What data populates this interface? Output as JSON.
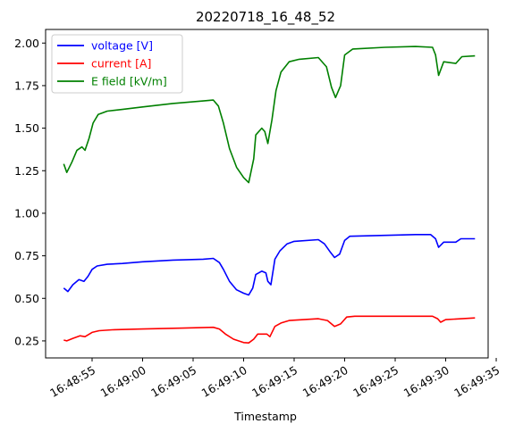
{
  "chart_data": {
    "type": "line",
    "title": "20220718_16_48_52",
    "xlabel": "Timestamp",
    "ylabel": "",
    "x_is_time": true,
    "xlim": [
      "16:48:50.4",
      "16:49:34.2"
    ],
    "ylim": [
      0.15,
      2.08
    ],
    "x_ticks": [
      "16:48:55",
      "16:49:00",
      "16:49:05",
      "16:49:10",
      "16:49:15",
      "16:49:20",
      "16:49:25",
      "16:49:30",
      "16:49:35"
    ],
    "y_ticks": [
      "0.25",
      "0.50",
      "0.75",
      "1.00",
      "1.25",
      "1.50",
      "1.75",
      "2.00"
    ],
    "grid": false,
    "legend_position": "top-left",
    "series": [
      {
        "name": "voltage [V]",
        "color": "#0000ff",
        "points": [
          [
            "16:48:52.2",
            0.56
          ],
          [
            "16:48:52.6",
            0.54
          ],
          [
            "16:48:53.1",
            0.58
          ],
          [
            "16:48:53.7",
            0.61
          ],
          [
            "16:48:54.2",
            0.6
          ],
          [
            "16:48:54.6",
            0.63
          ],
          [
            "16:48:55.0",
            0.67
          ],
          [
            "16:48:55.5",
            0.69
          ],
          [
            "16:48:56.5",
            0.7
          ],
          [
            "16:48:58.0",
            0.705
          ],
          [
            "16:49:00.0",
            0.715
          ],
          [
            "16:49:03.0",
            0.725
          ],
          [
            "16:49:06.0",
            0.73
          ],
          [
            "16:49:07.0",
            0.735
          ],
          [
            "16:49:07.6",
            0.71
          ],
          [
            "16:49:08.0",
            0.67
          ],
          [
            "16:49:08.6",
            0.6
          ],
          [
            "16:49:09.3",
            0.55
          ],
          [
            "16:49:10.0",
            0.53
          ],
          [
            "16:49:10.5",
            0.52
          ],
          [
            "16:49:10.9",
            0.56
          ],
          [
            "16:49:11.2",
            0.64
          ],
          [
            "16:49:11.8",
            0.66
          ],
          [
            "16:49:12.2",
            0.65
          ],
          [
            "16:49:12.4",
            0.6
          ],
          [
            "16:49:12.7",
            0.58
          ],
          [
            "16:49:13.1",
            0.73
          ],
          [
            "16:49:13.6",
            0.78
          ],
          [
            "16:49:14.3",
            0.82
          ],
          [
            "16:49:15.0",
            0.835
          ],
          [
            "16:49:17.4",
            0.845
          ],
          [
            "16:49:18.0",
            0.82
          ],
          [
            "16:49:18.6",
            0.77
          ],
          [
            "16:49:19.0",
            0.74
          ],
          [
            "16:49:19.5",
            0.76
          ],
          [
            "16:49:20.0",
            0.84
          ],
          [
            "16:49:20.5",
            0.865
          ],
          [
            "16:49:24.0",
            0.87
          ],
          [
            "16:49:27.0",
            0.875
          ],
          [
            "16:49:28.5",
            0.875
          ],
          [
            "16:49:29.0",
            0.85
          ],
          [
            "16:49:29.3",
            0.8
          ],
          [
            "16:49:29.8",
            0.83
          ],
          [
            "16:49:31.0",
            0.83
          ],
          [
            "16:49:31.5",
            0.85
          ],
          [
            "16:49:32.9",
            0.85
          ]
        ]
      },
      {
        "name": "current [A]",
        "color": "#ff0000",
        "points": [
          [
            "16:48:52.2",
            0.255
          ],
          [
            "16:48:52.5",
            0.25
          ],
          [
            "16:48:53.1",
            0.265
          ],
          [
            "16:48:53.8",
            0.28
          ],
          [
            "16:48:54.3",
            0.275
          ],
          [
            "16:48:55.0",
            0.3
          ],
          [
            "16:48:55.7",
            0.31
          ],
          [
            "16:48:57.0",
            0.315
          ],
          [
            "16:49:00.0",
            0.32
          ],
          [
            "16:49:04.0",
            0.325
          ],
          [
            "16:49:07.0",
            0.33
          ],
          [
            "16:49:07.6",
            0.32
          ],
          [
            "16:49:08.2",
            0.29
          ],
          [
            "16:49:09.0",
            0.26
          ],
          [
            "16:49:10.0",
            0.24
          ],
          [
            "16:49:10.5",
            0.238
          ],
          [
            "16:49:11.0",
            0.26
          ],
          [
            "16:49:11.4",
            0.29
          ],
          [
            "16:49:12.3",
            0.29
          ],
          [
            "16:49:12.6",
            0.275
          ],
          [
            "16:49:13.1",
            0.335
          ],
          [
            "16:49:13.7",
            0.355
          ],
          [
            "16:49:14.5",
            0.37
          ],
          [
            "16:49:17.4",
            0.38
          ],
          [
            "16:49:18.3",
            0.37
          ],
          [
            "16:49:19.0",
            0.335
          ],
          [
            "16:49:19.6",
            0.35
          ],
          [
            "16:49:20.2",
            0.39
          ],
          [
            "16:49:21.0",
            0.395
          ],
          [
            "16:49:28.7",
            0.395
          ],
          [
            "16:49:29.2",
            0.38
          ],
          [
            "16:49:29.5",
            0.36
          ],
          [
            "16:49:30.0",
            0.375
          ],
          [
            "16:49:32.9",
            0.385
          ]
        ]
      },
      {
        "name": "E field [kV/m]",
        "color": "#008000",
        "points": [
          [
            "16:48:52.2",
            1.29
          ],
          [
            "16:48:52.5",
            1.24
          ],
          [
            "16:48:53.0",
            1.3
          ],
          [
            "16:48:53.5",
            1.37
          ],
          [
            "16:48:54.0",
            1.39
          ],
          [
            "16:48:54.3",
            1.37
          ],
          [
            "16:48:54.7",
            1.44
          ],
          [
            "16:48:55.1",
            1.53
          ],
          [
            "16:48:55.6",
            1.58
          ],
          [
            "16:48:56.5",
            1.6
          ],
          [
            "16:48:58.0",
            1.61
          ],
          [
            "16:49:00.0",
            1.625
          ],
          [
            "16:49:03.0",
            1.645
          ],
          [
            "16:49:06.0",
            1.66
          ],
          [
            "16:49:07.0",
            1.665
          ],
          [
            "16:49:07.5",
            1.63
          ],
          [
            "16:49:08.0",
            1.53
          ],
          [
            "16:49:08.6",
            1.38
          ],
          [
            "16:49:09.3",
            1.27
          ],
          [
            "16:49:10.0",
            1.21
          ],
          [
            "16:49:10.5",
            1.18
          ],
          [
            "16:49:11.0",
            1.32
          ],
          [
            "16:49:11.2",
            1.46
          ],
          [
            "16:49:11.8",
            1.5
          ],
          [
            "16:49:12.1",
            1.48
          ],
          [
            "16:49:12.4",
            1.41
          ],
          [
            "16:49:12.8",
            1.55
          ],
          [
            "16:49:13.2",
            1.72
          ],
          [
            "16:49:13.7",
            1.83
          ],
          [
            "16:49:14.5",
            1.89
          ],
          [
            "16:49:15.5",
            1.905
          ],
          [
            "16:49:17.4",
            1.915
          ],
          [
            "16:49:18.2",
            1.86
          ],
          [
            "16:49:18.7",
            1.74
          ],
          [
            "16:49:19.1",
            1.68
          ],
          [
            "16:49:19.6",
            1.75
          ],
          [
            "16:49:20.0",
            1.93
          ],
          [
            "16:49:20.8",
            1.965
          ],
          [
            "16:49:24.0",
            1.975
          ],
          [
            "16:49:27.0",
            1.98
          ],
          [
            "16:49:28.7",
            1.975
          ],
          [
            "16:49:29.0",
            1.93
          ],
          [
            "16:49:29.3",
            1.81
          ],
          [
            "16:49:29.8",
            1.89
          ],
          [
            "16:49:31.0",
            1.88
          ],
          [
            "16:49:31.6",
            1.92
          ],
          [
            "16:49:32.9",
            1.925
          ]
        ]
      }
    ]
  }
}
